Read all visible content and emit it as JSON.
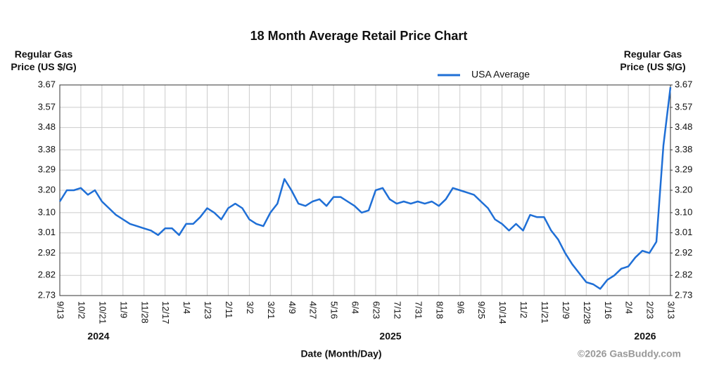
{
  "chart_data": {
    "type": "line",
    "title": "18 Month Average Retail Price Chart",
    "ylabel": "Regular Gas Price (US $/G)",
    "y2label": "Regular Gas Price (US $/G)",
    "xlabel": "Date (Month/Day)",
    "credit": "©2026 GasBuddy.com",
    "year_labels": [
      "2024",
      "2025",
      "2026"
    ],
    "categories": [
      "9/13",
      null,
      null,
      "10/2",
      null,
      null,
      "10/21",
      null,
      null,
      "11/9",
      null,
      null,
      "11/28",
      null,
      null,
      "12/17",
      null,
      null,
      "1/4",
      null,
      null,
      "1/23",
      null,
      null,
      "2/11",
      null,
      null,
      "3/2",
      null,
      null,
      "3/21",
      null,
      null,
      "4/9",
      null,
      null,
      "4/27",
      null,
      null,
      "5/16",
      null,
      null,
      "6/4",
      null,
      null,
      "6/23",
      null,
      null,
      "7/12",
      null,
      null,
      "7/31",
      null,
      null,
      "8/18",
      null,
      null,
      "9/6",
      null,
      null,
      "9/25",
      null,
      null,
      "10/14",
      null,
      null,
      "11/2",
      null,
      null,
      "11/21",
      null,
      null,
      "12/9",
      null,
      null,
      "12/28",
      null,
      null,
      "1/16",
      null,
      null,
      "2/4",
      null,
      null,
      "2/23",
      null,
      null,
      "3/13"
    ],
    "series": [
      {
        "name": "USA Average",
        "color": "#1f6fd6",
        "values": [
          3.15,
          3.2,
          3.2,
          3.21,
          3.18,
          3.2,
          3.15,
          3.12,
          3.09,
          3.07,
          3.05,
          3.04,
          3.03,
          3.02,
          3.0,
          3.03,
          3.03,
          3.0,
          3.05,
          3.05,
          3.08,
          3.12,
          3.1,
          3.07,
          3.12,
          3.14,
          3.12,
          3.07,
          3.05,
          3.04,
          3.1,
          3.14,
          3.25,
          3.2,
          3.14,
          3.13,
          3.15,
          3.16,
          3.13,
          3.17,
          3.17,
          3.15,
          3.13,
          3.1,
          3.11,
          3.2,
          3.21,
          3.16,
          3.14,
          3.15,
          3.14,
          3.15,
          3.14,
          3.15,
          3.13,
          3.16,
          3.21,
          3.2,
          3.19,
          3.18,
          3.15,
          3.12,
          3.07,
          3.05,
          3.02,
          3.05,
          3.02,
          3.09,
          3.08,
          3.08,
          3.02,
          2.98,
          2.92,
          2.87,
          2.83,
          2.79,
          2.78,
          2.76,
          2.8,
          2.82,
          2.85,
          2.86,
          2.9,
          2.93,
          2.92,
          2.97,
          3.4,
          3.66
        ]
      }
    ],
    "ylim": [
      2.73,
      3.67
    ],
    "yticks": [
      2.73,
      2.82,
      2.92,
      3.01,
      {
        "value": 3.1,
        "label": "3.10"
      },
      {
        "value": 3.2,
        "label": "3.20"
      },
      3.29,
      3.38,
      3.48,
      3.57,
      3.67
    ],
    "y2lim": [
      2.73,
      3.67
    ],
    "y2ticks": [
      2.73,
      2.82,
      2.92,
      3.01,
      {
        "value": 3.1,
        "label": "3.10"
      },
      {
        "value": 3.2,
        "label": "3.20"
      },
      3.29,
      3.38,
      3.48,
      3.57,
      3.67
    ],
    "grid": true,
    "legend": "top"
  }
}
